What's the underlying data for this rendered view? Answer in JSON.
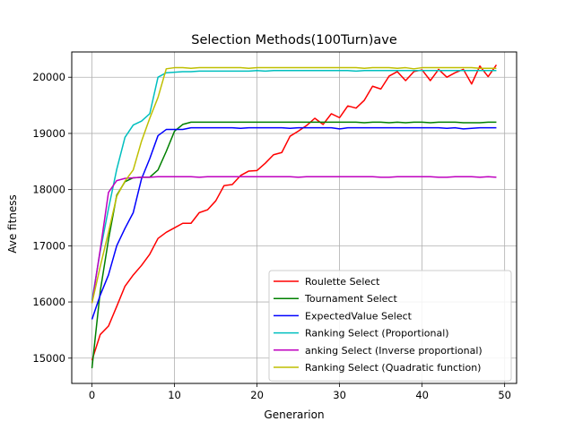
{
  "chart_data": {
    "type": "line",
    "title": "Selection Methods(100Turn)ave",
    "xlabel": "Generarion",
    "ylabel": "Ave fitness",
    "xlim": [
      -2.45,
      51.45
    ],
    "ylim": [
      14550,
      20450
    ],
    "xticks": [
      0,
      10,
      20,
      30,
      40,
      50
    ],
    "yticks": [
      15000,
      16000,
      17000,
      18000,
      19000,
      20000
    ],
    "grid": true,
    "legend_position": "lower-right",
    "series": [
      {
        "name": "Roulette Select",
        "color": "#ff0000",
        "values": [
          14960,
          15420,
          15570,
          15920,
          16280,
          16480,
          16650,
          16850,
          17130,
          17240,
          17320,
          17400,
          17400,
          17590,
          17640,
          17800,
          18070,
          18090,
          18250,
          18330,
          18340,
          18470,
          18620,
          18660,
          18950,
          19040,
          19140,
          19270,
          19160,
          19350,
          19280,
          19490,
          19450,
          19590,
          19840,
          19790,
          20020,
          20100,
          19940,
          20100,
          20130,
          19940,
          20140,
          20000,
          20080,
          20140,
          19880,
          20200,
          20010,
          20220
        ]
      },
      {
        "name": "Tournament Select",
        "color": "#008000",
        "values": [
          14820,
          16190,
          17110,
          17900,
          18140,
          18210,
          18220,
          18220,
          18350,
          18680,
          19040,
          19160,
          19200,
          19200,
          19200,
          19200,
          19200,
          19200,
          19200,
          19200,
          19200,
          19200,
          19200,
          19200,
          19200,
          19200,
          19200,
          19200,
          19200,
          19200,
          19200,
          19200,
          19200,
          19190,
          19200,
          19200,
          19190,
          19200,
          19190,
          19200,
          19200,
          19190,
          19200,
          19200,
          19200,
          19190,
          19190,
          19190,
          19200,
          19200
        ]
      },
      {
        "name": "ExpectedValue Select",
        "color": "#0000ff",
        "values": [
          15690,
          16120,
          16480,
          17000,
          17310,
          17590,
          18190,
          18550,
          18960,
          19070,
          19070,
          19070,
          19100,
          19100,
          19100,
          19100,
          19100,
          19100,
          19090,
          19100,
          19100,
          19100,
          19100,
          19100,
          19090,
          19100,
          19100,
          19100,
          19100,
          19100,
          19080,
          19100,
          19100,
          19100,
          19100,
          19100,
          19100,
          19100,
          19100,
          19100,
          19100,
          19100,
          19100,
          19090,
          19100,
          19080,
          19090,
          19100,
          19100,
          19100
        ]
      },
      {
        "name": "Ranking Select (Proportional)",
        "color": "#00bfbf",
        "values": [
          16030,
          16900,
          17660,
          18360,
          18930,
          19150,
          19220,
          19350,
          20000,
          20080,
          20090,
          20100,
          20100,
          20110,
          20110,
          20110,
          20110,
          20110,
          20110,
          20110,
          20120,
          20110,
          20120,
          20120,
          20120,
          20120,
          20120,
          20120,
          20120,
          20120,
          20120,
          20120,
          20110,
          20120,
          20120,
          20120,
          20120,
          20120,
          20120,
          20120,
          20120,
          20120,
          20120,
          20120,
          20120,
          20120,
          20120,
          20120,
          20120,
          20120
        ]
      },
      {
        "name": "anking Select (Inverse proportional)",
        "color": "#bf00bf",
        "values": [
          15980,
          16930,
          17950,
          18160,
          18200,
          18210,
          18220,
          18220,
          18230,
          18230,
          18230,
          18230,
          18230,
          18220,
          18230,
          18230,
          18230,
          18230,
          18230,
          18230,
          18230,
          18230,
          18230,
          18230,
          18230,
          18220,
          18230,
          18230,
          18230,
          18230,
          18230,
          18230,
          18230,
          18230,
          18230,
          18220,
          18220,
          18230,
          18230,
          18230,
          18230,
          18230,
          18220,
          18220,
          18230,
          18230,
          18230,
          18220,
          18230,
          18220
        ]
      },
      {
        "name": "Ranking Select (Quadratic function)",
        "color": "#bfbf00",
        "values": [
          15980,
          16630,
          17240,
          17880,
          18150,
          18350,
          18860,
          19270,
          19640,
          20150,
          20170,
          20170,
          20160,
          20170,
          20170,
          20170,
          20170,
          20170,
          20170,
          20160,
          20170,
          20170,
          20170,
          20170,
          20170,
          20170,
          20170,
          20170,
          20170,
          20170,
          20170,
          20170,
          20170,
          20160,
          20170,
          20170,
          20170,
          20160,
          20170,
          20150,
          20170,
          20170,
          20170,
          20170,
          20170,
          20170,
          20170,
          20160,
          20160,
          20160
        ]
      }
    ]
  }
}
